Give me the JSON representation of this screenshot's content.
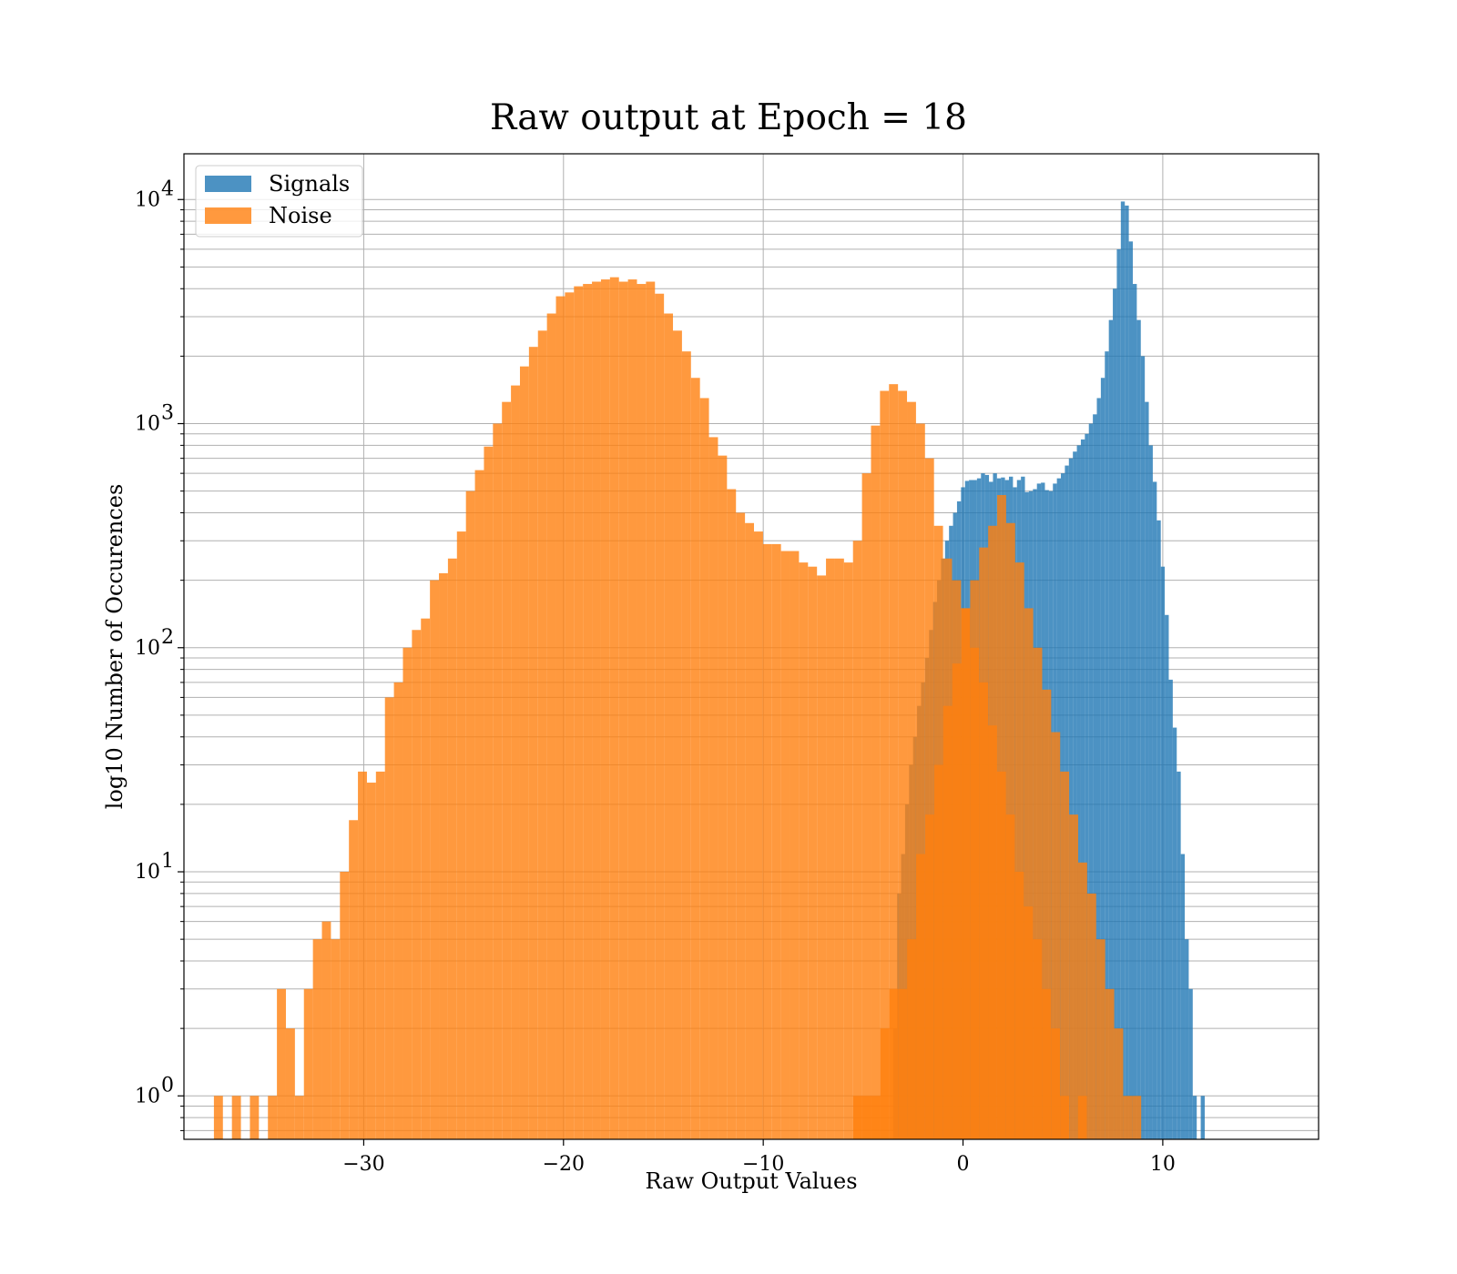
{
  "chart_data": {
    "type": "bar",
    "histogram": true,
    "title": "Raw output at Epoch = 18",
    "xlabel": "Raw Output Values",
    "ylabel": "log10 Number of Occurences",
    "xlim": [
      -39,
      17.8
    ],
    "ylim": [
      0.64,
      16000
    ],
    "yscale": "log",
    "grid": true,
    "x_ticks": [
      {
        "value": -30,
        "label": "−30"
      },
      {
        "value": -20,
        "label": "−20"
      },
      {
        "value": -10,
        "label": "−10"
      },
      {
        "value": 0,
        "label": "0"
      },
      {
        "value": 10,
        "label": "10"
      }
    ],
    "y_ticks": [
      {
        "value": 1,
        "base": "10",
        "exp": "0"
      },
      {
        "value": 10,
        "base": "10",
        "exp": "1"
      },
      {
        "value": 100,
        "base": "10",
        "exp": "2"
      },
      {
        "value": 1000,
        "base": "10",
        "exp": "3"
      },
      {
        "value": 10000,
        "base": "10",
        "exp": "4"
      }
    ],
    "legend": {
      "position": "upper-left"
    },
    "series": [
      {
        "name": "Signals",
        "color": "#1f77b4",
        "alpha": 0.8,
        "bin_start": -3.5,
        "bin_width": 0.2,
        "values": [
          2,
          8,
          12,
          20,
          30,
          40,
          55,
          70,
          90,
          120,
          160,
          200,
          250,
          300,
          350,
          400,
          450,
          520,
          555,
          560,
          560,
          570,
          600,
          590,
          550,
          600,
          570,
          575,
          560,
          580,
          520,
          560,
          580,
          495,
          500,
          510,
          540,
          545,
          505,
          500,
          540,
          570,
          600,
          650,
          700,
          750,
          800,
          850,
          900,
          1000,
          1100,
          1300,
          1600,
          2100,
          2900,
          4000,
          6000,
          9800,
          9400,
          6500,
          4200,
          2900,
          2000,
          1250,
          800,
          550,
          370,
          230,
          140,
          72,
          44,
          28,
          12,
          5,
          3,
          1,
          0,
          1
        ]
      },
      {
        "name": "Noise",
        "color": "#ff7f0e",
        "alpha": 0.8,
        "bin_start": -37.5,
        "bin_width": 0.4506,
        "values": [
          1,
          0,
          1,
          0,
          1,
          0,
          1,
          3,
          2,
          1,
          3,
          5,
          6,
          5,
          10,
          17,
          28,
          25,
          28,
          60,
          70,
          100,
          120,
          135,
          200,
          215,
          250,
          330,
          500,
          620,
          790,
          1000,
          1250,
          1480,
          1800,
          2200,
          2600,
          3100,
          3700,
          3850,
          4100,
          4200,
          4300,
          4400,
          4500,
          4300,
          4400,
          4200,
          4300,
          3800,
          3100,
          2600,
          2100,
          1600,
          1300,
          870,
          720,
          510,
          400,
          360,
          330,
          290,
          290,
          270,
          270,
          240,
          230,
          210,
          250,
          250,
          240,
          300,
          600,
          980,
          1400,
          1500,
          1400,
          1250,
          1000,
          700,
          350,
          250,
          200,
          150,
          100,
          70,
          45,
          28,
          18,
          10,
          7,
          5,
          3,
          2,
          1,
          0,
          1
        ]
      },
      {
        "name": "",
        "color": "#ff7f0e",
        "alpha": 0.8,
        "bin_start": -5.5,
        "bin_width": 0.4506,
        "values": [
          1,
          1,
          1,
          2,
          3,
          3,
          5,
          12,
          18,
          30,
          55,
          85,
          150,
          200,
          280,
          350,
          480,
          360,
          240,
          150,
          100,
          65,
          42,
          28,
          18,
          11,
          8,
          5,
          3,
          2,
          1,
          1
        ]
      }
    ]
  }
}
